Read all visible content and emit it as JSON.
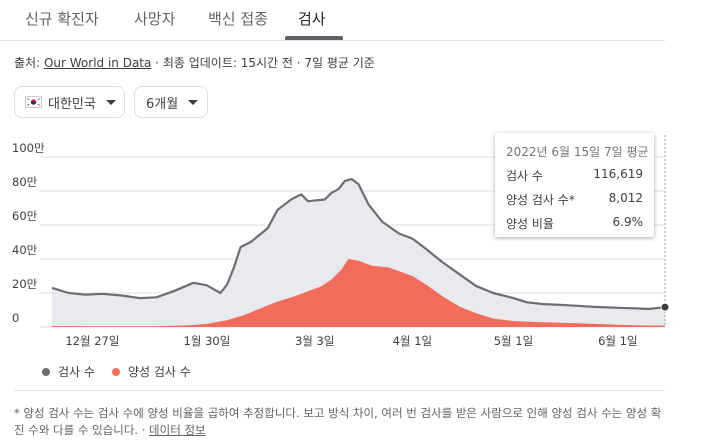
{
  "tabs": [
    {
      "label": "신규 확진자"
    },
    {
      "label": "사망자"
    },
    {
      "label": "백신 접종"
    },
    {
      "label": "검사"
    }
  ],
  "source": {
    "prefix": "출처: ",
    "link": "Our World in Data",
    "rest": " · 최종 업데이트: 15시간 전 · 7일 평균 기준"
  },
  "filters": {
    "country": "대한민국",
    "period": "6개월"
  },
  "tooltip": {
    "title": "2022년 6월 15일 7일 평균",
    "rows": [
      {
        "label": "검사 수",
        "value": "116,619"
      },
      {
        "label": "양성 검사 수*",
        "value": "8,012"
      },
      {
        "label": "양성 비율",
        "value": "6.9%"
      }
    ]
  },
  "legend": {
    "tests": "검사 수",
    "positive": "양성 검사 수"
  },
  "footnote": {
    "text": "* 양성 검사 수는 검사 수에 양성 비율을 곱하여 추정합니다. 보고 방식 차이, 여러 번 검사를 받은 사람으로 인해 양성 검사 수는 양성 확진 수와 다를 수 있습니다.",
    "link": "데이터 정보"
  },
  "colors": {
    "tests_line": "#6b6e72",
    "tests_fill": "#e8eaed",
    "positive_fill": "#f26b5b",
    "grid": "#e0e0e0"
  },
  "chart_data": {
    "type": "area",
    "ylim": [
      0,
      1000000
    ],
    "y_ticks": [
      {
        "value": 0,
        "label": "0"
      },
      {
        "value": 200000,
        "label": "20만"
      },
      {
        "value": 400000,
        "label": "40만"
      },
      {
        "value": 600000,
        "label": "60만"
      },
      {
        "value": 800000,
        "label": "80만"
      },
      {
        "value": 1000000,
        "label": "100만"
      }
    ],
    "x_range": [
      "2021-12-15",
      "2022-06-15"
    ],
    "x_ticks": [
      {
        "date": "2021-12-27",
        "label": "12월 27일"
      },
      {
        "date": "2022-01-30",
        "label": "1월 30일"
      },
      {
        "date": "2022-03-03",
        "label": "3월 3일"
      },
      {
        "date": "2022-04-01",
        "label": "4월 1일"
      },
      {
        "date": "2022-05-01",
        "label": "5월 1일"
      },
      {
        "date": "2022-06-01",
        "label": "6월 1일"
      }
    ],
    "series": [
      {
        "name": "검사 수",
        "points": [
          [
            "2021-12-15",
            230000
          ],
          [
            "2021-12-20",
            200000
          ],
          [
            "2021-12-25",
            190000
          ],
          [
            "2021-12-30",
            195000
          ],
          [
            "2022-01-05",
            185000
          ],
          [
            "2022-01-10",
            170000
          ],
          [
            "2022-01-15",
            175000
          ],
          [
            "2022-01-20",
            210000
          ],
          [
            "2022-01-26",
            260000
          ],
          [
            "2022-01-30",
            245000
          ],
          [
            "2022-02-03",
            200000
          ],
          [
            "2022-02-05",
            250000
          ],
          [
            "2022-02-07",
            350000
          ],
          [
            "2022-02-09",
            470000
          ],
          [
            "2022-02-12",
            500000
          ],
          [
            "2022-02-17",
            580000
          ],
          [
            "2022-02-20",
            690000
          ],
          [
            "2022-02-24",
            750000
          ],
          [
            "2022-02-27",
            780000
          ],
          [
            "2022-03-01",
            740000
          ],
          [
            "2022-03-06",
            750000
          ],
          [
            "2022-03-08",
            790000
          ],
          [
            "2022-03-10",
            810000
          ],
          [
            "2022-03-12",
            860000
          ],
          [
            "2022-03-14",
            870000
          ],
          [
            "2022-03-16",
            840000
          ],
          [
            "2022-03-19",
            720000
          ],
          [
            "2022-03-23",
            620000
          ],
          [
            "2022-03-28",
            550000
          ],
          [
            "2022-04-01",
            520000
          ],
          [
            "2022-04-05",
            460000
          ],
          [
            "2022-04-10",
            380000
          ],
          [
            "2022-04-15",
            310000
          ],
          [
            "2022-04-20",
            240000
          ],
          [
            "2022-04-25",
            200000
          ],
          [
            "2022-05-01",
            170000
          ],
          [
            "2022-05-05",
            145000
          ],
          [
            "2022-05-10",
            135000
          ],
          [
            "2022-05-15",
            130000
          ],
          [
            "2022-05-20",
            125000
          ],
          [
            "2022-05-25",
            118000
          ],
          [
            "2022-06-01",
            113000
          ],
          [
            "2022-06-06",
            110000
          ],
          [
            "2022-06-10",
            106000
          ],
          [
            "2022-06-15",
            116619
          ]
        ]
      },
      {
        "name": "양성 검사 수",
        "points": [
          [
            "2021-12-15",
            6000
          ],
          [
            "2021-12-25",
            5000
          ],
          [
            "2022-01-05",
            4000
          ],
          [
            "2022-01-15",
            5000
          ],
          [
            "2022-01-25",
            10000
          ],
          [
            "2022-01-30",
            18000
          ],
          [
            "2022-02-05",
            40000
          ],
          [
            "2022-02-10",
            70000
          ],
          [
            "2022-02-15",
            110000
          ],
          [
            "2022-02-20",
            150000
          ],
          [
            "2022-02-25",
            180000
          ],
          [
            "2022-03-01",
            210000
          ],
          [
            "2022-03-05",
            240000
          ],
          [
            "2022-03-08",
            280000
          ],
          [
            "2022-03-11",
            340000
          ],
          [
            "2022-03-13",
            400000
          ],
          [
            "2022-03-16",
            390000
          ],
          [
            "2022-03-20",
            360000
          ],
          [
            "2022-03-25",
            350000
          ],
          [
            "2022-04-01",
            300000
          ],
          [
            "2022-04-05",
            250000
          ],
          [
            "2022-04-10",
            180000
          ],
          [
            "2022-04-15",
            120000
          ],
          [
            "2022-04-20",
            80000
          ],
          [
            "2022-04-25",
            50000
          ],
          [
            "2022-05-01",
            35000
          ],
          [
            "2022-05-10",
            28000
          ],
          [
            "2022-05-20",
            22000
          ],
          [
            "2022-06-01",
            13000
          ],
          [
            "2022-06-10",
            9000
          ],
          [
            "2022-06-15",
            8012
          ]
        ]
      }
    ]
  }
}
